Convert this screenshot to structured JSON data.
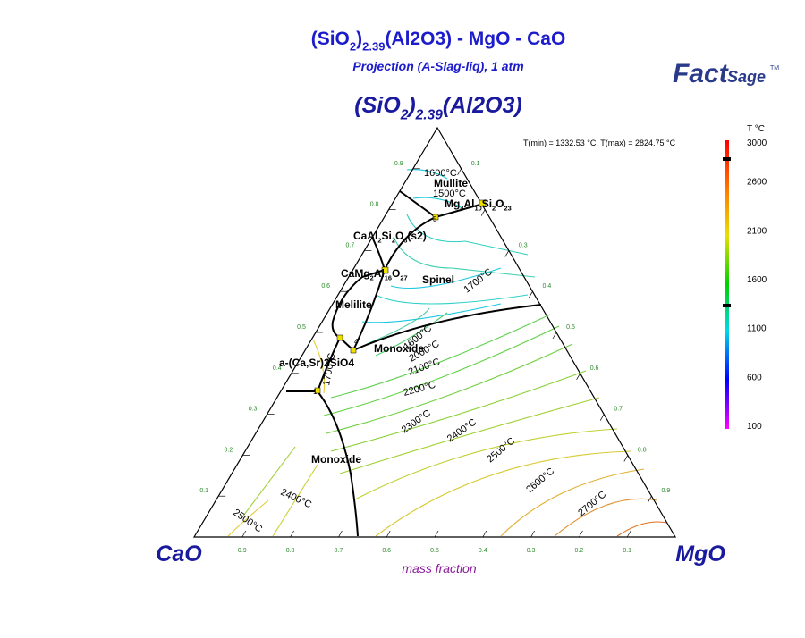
{
  "header": {
    "title": [
      "(SiO",
      "2",
      ")",
      "2.39",
      "(Al2O3) - MgO - CaO"
    ],
    "subtitle": "Projection (A-Slag-liq), 1 atm",
    "logo": {
      "fact": "Fact",
      "sage": "Sage",
      "tm": "TM"
    }
  },
  "apexes": {
    "top": [
      "(SiO",
      "2",
      ")",
      "2.39",
      "(Al2O3)"
    ],
    "left": "CaO",
    "right": "MgO"
  },
  "axis_label": "mass fraction",
  "temperature_range": "T(min) = 1332.53 °C, T(max) = 2824.75 °C",
  "colorbar": {
    "title": "T °C",
    "ticks": [
      3000,
      2600,
      2100,
      1600,
      1100,
      600,
      100
    ]
  },
  "ternary_ticks": {
    "bottom": [
      0.9,
      0.8,
      0.7,
      0.6,
      0.5,
      0.4,
      0.3,
      0.2,
      0.1
    ],
    "left": [
      0.1,
      0.2,
      0.3,
      0.4,
      0.5,
      0.6,
      0.7,
      0.8,
      0.9
    ],
    "right": [
      0.1,
      0.2,
      0.3,
      0.4,
      0.5,
      0.6,
      0.7,
      0.8,
      0.9
    ]
  },
  "phases": [
    {
      "parts": [
        "Mullite"
      ]
    },
    {
      "parts": [
        "Mg",
        "4",
        "Al",
        "10",
        "Si",
        "2",
        "O",
        "23"
      ]
    },
    {
      "parts": [
        "CaAl",
        "2",
        "Si",
        "2",
        "O",
        "8",
        "(s2)"
      ]
    },
    {
      "parts": [
        "CaMg",
        "2",
        "Al",
        "16",
        "O",
        "27"
      ]
    },
    {
      "parts": [
        "Spinel"
      ]
    },
    {
      "parts": [
        "Melilite"
      ]
    },
    {
      "parts": [
        "Monoxide"
      ]
    },
    {
      "parts": [
        "a-(Ca,Sr)2SiO4"
      ]
    },
    {
      "parts": [
        "Monoxide"
      ]
    }
  ],
  "invariant_points": [
    "5",
    "4",
    "1"
  ],
  "isotherms": [
    "1600°C",
    "1500°C",
    "1700°C",
    "1700°C",
    "1600°C",
    "2000°C",
    "2100°C",
    "2200°C",
    "2300°C",
    "2400°C",
    "2500°C",
    "2600°C",
    "2700°C",
    "2400°C",
    "2500°C"
  ]
}
